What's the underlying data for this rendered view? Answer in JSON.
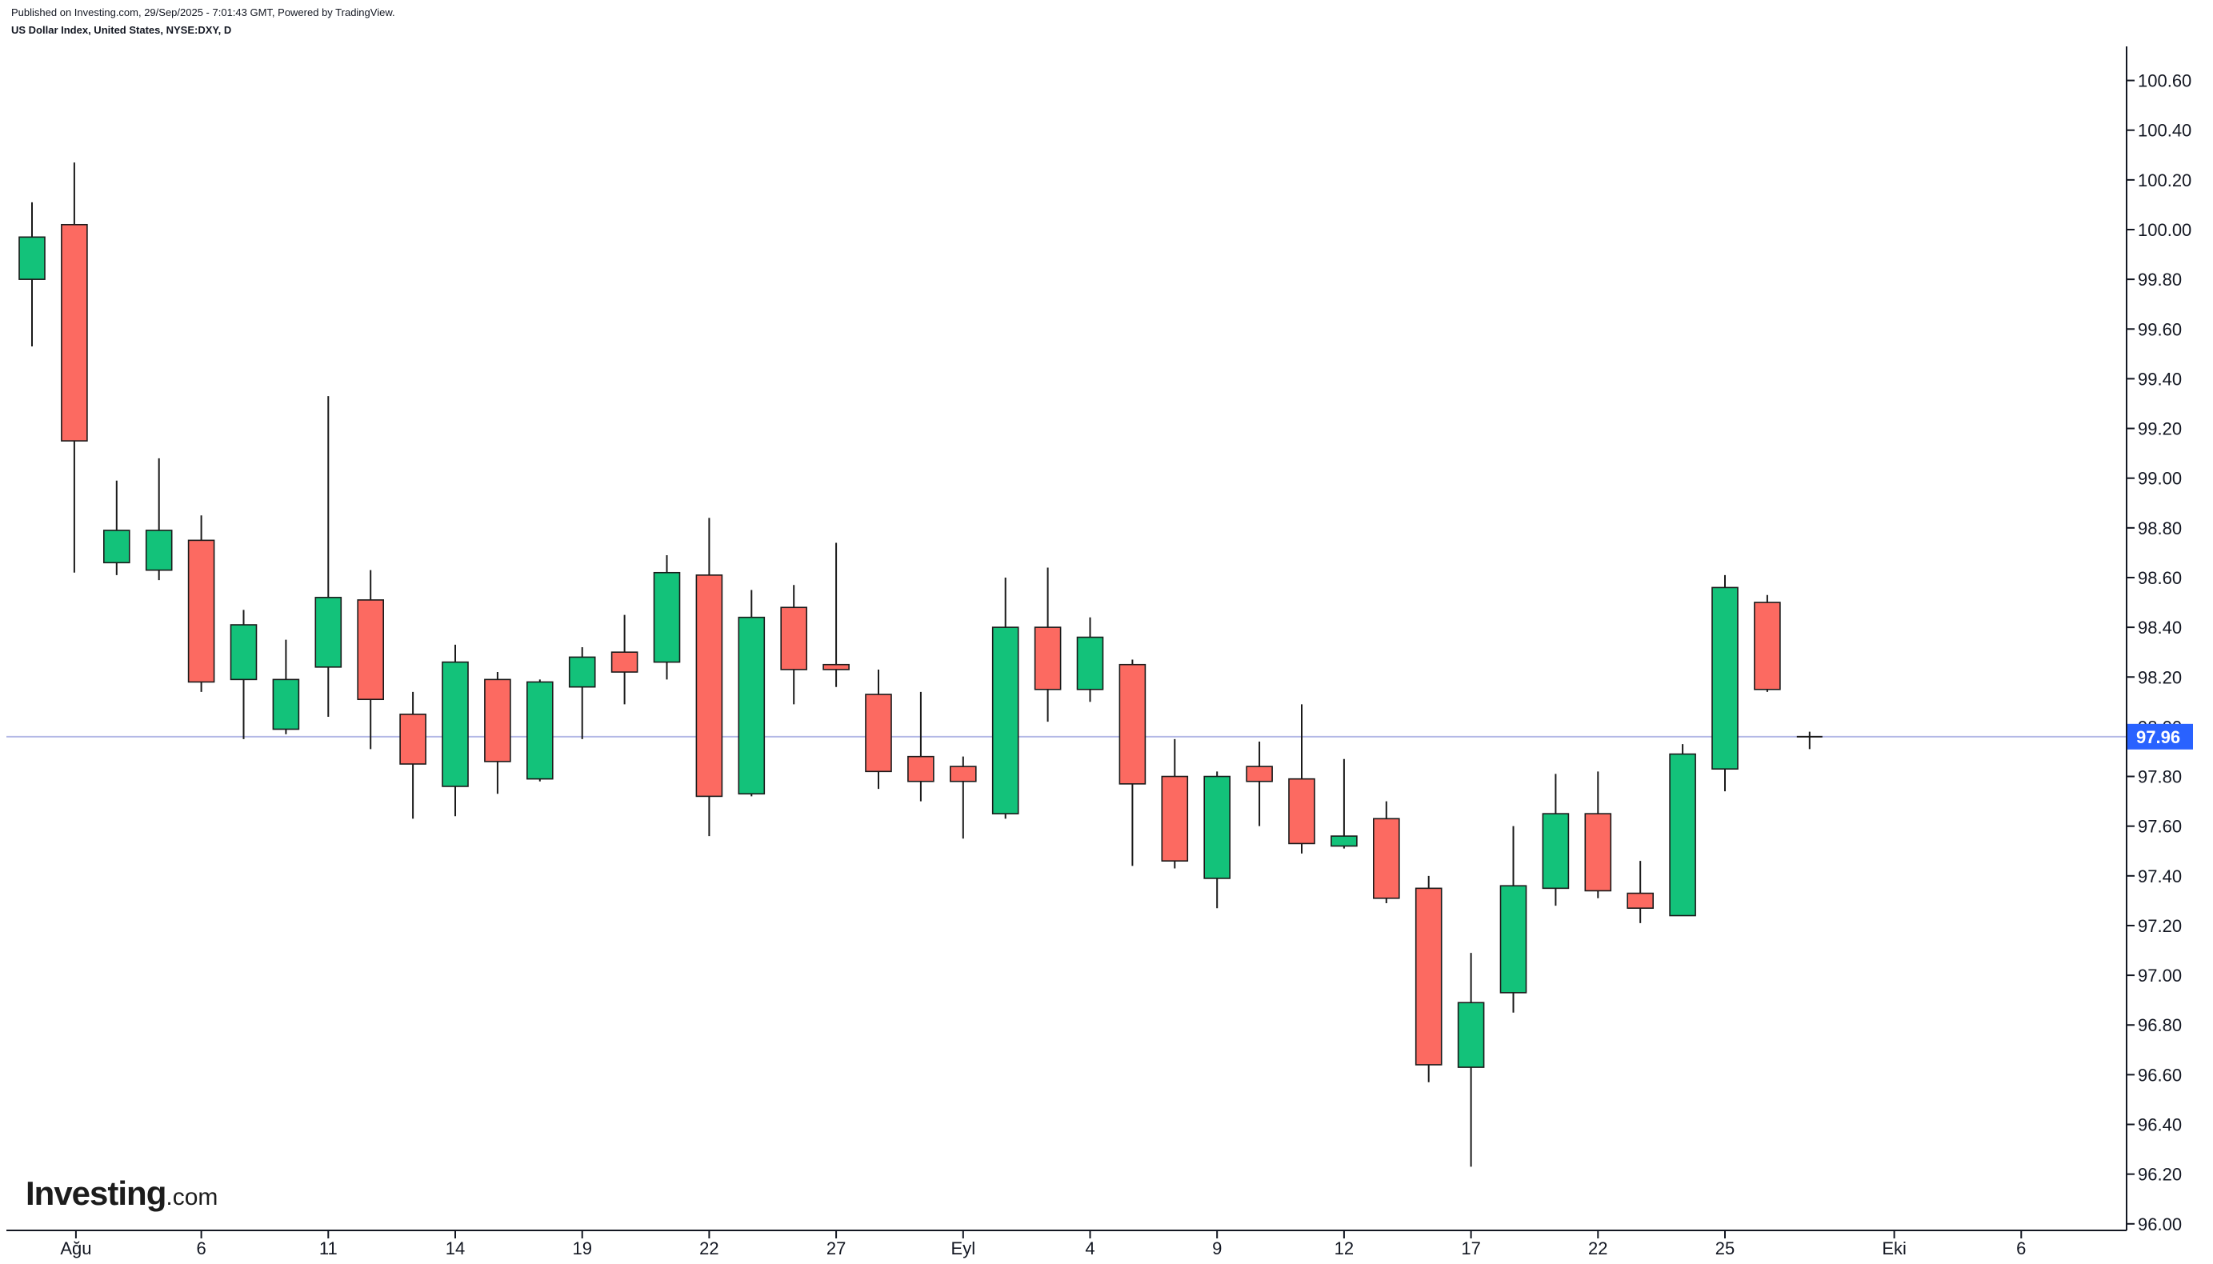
{
  "header": {
    "published": "Published on Investing.com, 29/Sep/2025 - 7:01:43 GMT, Powered by TradingView.",
    "symbol": "US Dollar Index, United States, NYSE:DXY, D"
  },
  "logo": {
    "brand": "Investing",
    "domain": ".com"
  },
  "colors": {
    "up": "#13c27a",
    "down": "#fc6a61",
    "outline": "#1a1a1a",
    "price_line": "#b3b8e6",
    "price_label_bg": "#2962ff",
    "price_label_text": "#ffffff"
  },
  "chart_data": {
    "type": "candlestick",
    "y_axis": {
      "position": "right",
      "ticks": [
        "96.00",
        "96.20",
        "96.40",
        "96.60",
        "96.80",
        "97.00",
        "97.20",
        "97.40",
        "97.60",
        "97.80",
        "98.00",
        "98.20",
        "98.40",
        "98.60",
        "98.80",
        "99.00",
        "99.20",
        "99.40",
        "99.60",
        "99.80",
        "100.00",
        "100.20",
        "100.40",
        "100.60"
      ],
      "range": [
        96.0,
        100.75
      ]
    },
    "x_axis": {
      "labels": [
        "Ağu",
        "6",
        "11",
        "14",
        "19",
        "22",
        "27",
        "Eyl",
        "4",
        "9",
        "12",
        "17",
        "22",
        "25",
        "Eki",
        "6"
      ],
      "label_slots": [
        1,
        4,
        7,
        10,
        13,
        16,
        19,
        22,
        25,
        28,
        31,
        34,
        37,
        40,
        44,
        47
      ]
    },
    "current_price": {
      "label": "97.96",
      "value": 97.96
    },
    "candles": [
      {
        "o": 99.8,
        "h": 100.11,
        "l": 99.53,
        "c": 99.97
      },
      {
        "o": 100.02,
        "h": 100.27,
        "l": 98.62,
        "c": 99.15
      },
      {
        "o": 98.66,
        "h": 98.99,
        "l": 98.61,
        "c": 98.79
      },
      {
        "o": 98.63,
        "h": 99.08,
        "l": 98.59,
        "c": 98.79
      },
      {
        "o": 98.75,
        "h": 98.85,
        "l": 98.14,
        "c": 98.18
      },
      {
        "o": 98.19,
        "h": 98.47,
        "l": 97.95,
        "c": 98.41
      },
      {
        "o": 97.99,
        "h": 98.35,
        "l": 97.97,
        "c": 98.19
      },
      {
        "o": 98.24,
        "h": 99.33,
        "l": 98.04,
        "c": 98.52
      },
      {
        "o": 98.51,
        "h": 98.63,
        "l": 97.91,
        "c": 98.11
      },
      {
        "o": 98.05,
        "h": 98.14,
        "l": 97.63,
        "c": 97.85
      },
      {
        "o": 97.76,
        "h": 98.33,
        "l": 97.64,
        "c": 98.26
      },
      {
        "o": 98.19,
        "h": 98.22,
        "l": 97.73,
        "c": 97.86
      },
      {
        "o": 97.79,
        "h": 98.19,
        "l": 97.78,
        "c": 98.18
      },
      {
        "o": 98.16,
        "h": 98.32,
        "l": 97.95,
        "c": 98.28
      },
      {
        "o": 98.3,
        "h": 98.45,
        "l": 98.09,
        "c": 98.22
      },
      {
        "o": 98.26,
        "h": 98.69,
        "l": 98.19,
        "c": 98.62
      },
      {
        "o": 98.61,
        "h": 98.84,
        "l": 97.56,
        "c": 97.72
      },
      {
        "o": 97.73,
        "h": 98.55,
        "l": 97.72,
        "c": 98.44
      },
      {
        "o": 98.48,
        "h": 98.57,
        "l": 98.09,
        "c": 98.23
      },
      {
        "o": 98.25,
        "h": 98.74,
        "l": 98.16,
        "c": 98.23
      },
      {
        "o": 98.13,
        "h": 98.23,
        "l": 97.75,
        "c": 97.82
      },
      {
        "o": 97.88,
        "h": 98.14,
        "l": 97.7,
        "c": 97.78
      },
      {
        "o": 97.84,
        "h": 97.88,
        "l": 97.55,
        "c": 97.78
      },
      {
        "o": 97.65,
        "h": 98.6,
        "l": 97.63,
        "c": 98.4
      },
      {
        "o": 98.4,
        "h": 98.64,
        "l": 98.02,
        "c": 98.15
      },
      {
        "o": 98.15,
        "h": 98.44,
        "l": 98.1,
        "c": 98.36
      },
      {
        "o": 98.25,
        "h": 98.27,
        "l": 97.44,
        "c": 97.77
      },
      {
        "o": 97.8,
        "h": 97.95,
        "l": 97.43,
        "c": 97.46
      },
      {
        "o": 97.39,
        "h": 97.82,
        "l": 97.27,
        "c": 97.8
      },
      {
        "o": 97.84,
        "h": 97.94,
        "l": 97.6,
        "c": 97.78
      },
      {
        "o": 97.79,
        "h": 98.09,
        "l": 97.49,
        "c": 97.53
      },
      {
        "o": 97.52,
        "h": 97.87,
        "l": 97.51,
        "c": 97.56
      },
      {
        "o": 97.63,
        "h": 97.7,
        "l": 97.29,
        "c": 97.31
      },
      {
        "o": 97.35,
        "h": 97.4,
        "l": 96.57,
        "c": 96.64
      },
      {
        "o": 96.63,
        "h": 97.09,
        "l": 96.23,
        "c": 96.89
      },
      {
        "o": 96.93,
        "h": 97.6,
        "l": 96.85,
        "c": 97.36
      },
      {
        "o": 97.35,
        "h": 97.81,
        "l": 97.28,
        "c": 97.65
      },
      {
        "o": 97.65,
        "h": 97.82,
        "l": 97.31,
        "c": 97.34
      },
      {
        "o": 97.33,
        "h": 97.46,
        "l": 97.21,
        "c": 97.27
      },
      {
        "o": 97.24,
        "h": 97.93,
        "l": 97.24,
        "c": 97.89
      },
      {
        "o": 97.83,
        "h": 98.61,
        "l": 97.74,
        "c": 98.56
      },
      {
        "o": 98.5,
        "h": 98.53,
        "l": 98.14,
        "c": 98.15
      },
      {
        "o": 97.96,
        "h": 97.98,
        "l": 97.91,
        "c": 97.96
      }
    ]
  }
}
